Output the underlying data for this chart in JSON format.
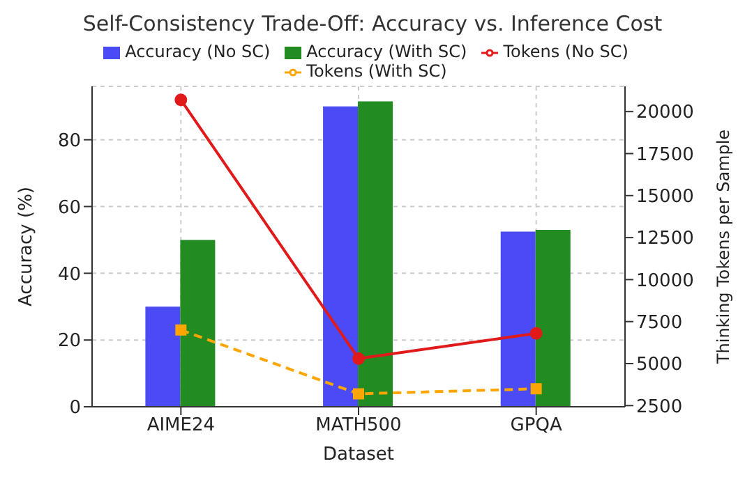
{
  "chart_data": {
    "type": "bar",
    "title": "Self-Consistency Trade-Off: Accuracy vs. Inference Cost",
    "xlabel": "Dataset",
    "ylabel": "Accuracy (%)",
    "y2label": "Thinking Tokens per Sample",
    "categories": [
      "AIME24",
      "MATH500",
      "GPQA"
    ],
    "series": [
      {
        "name": "Accuracy (No SC)",
        "color": "#4b4bf5",
        "values": [
          30,
          90,
          52.5
        ]
      },
      {
        "name": "Accuracy (With SC)",
        "color": "#228b22",
        "values": [
          50,
          91.5,
          53
        ]
      },
      {
        "name": "Tokens (No SC)",
        "type": "line",
        "axis": "y2",
        "color": "#e01a1a",
        "marker": "circle",
        "line_style": "solid",
        "values": [
          20700,
          5300,
          6800
        ]
      },
      {
        "name": "Tokens (With SC)",
        "type": "line",
        "axis": "y2",
        "color": "#ffa500",
        "marker": "square",
        "line_style": "dashed",
        "values": [
          7000,
          3200,
          3500
        ]
      }
    ],
    "ylim": [
      0,
      96
    ],
    "yticks": [
      0,
      20,
      40,
      60,
      80
    ],
    "y2lim": [
      2430,
      21500
    ],
    "y2ticks": [
      2500,
      5000,
      7500,
      10000,
      12500,
      15000,
      17500,
      20000
    ],
    "grid": true,
    "legend": "top"
  }
}
